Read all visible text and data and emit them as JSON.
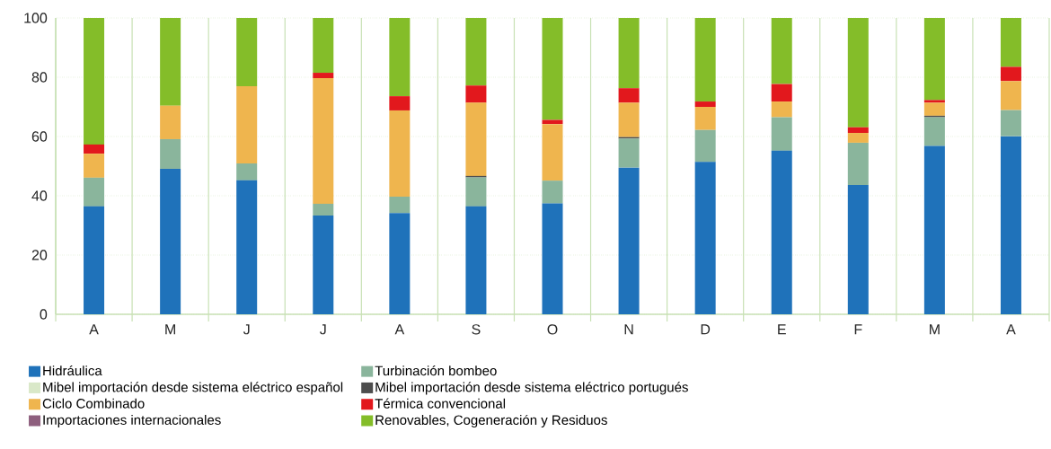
{
  "chart_data": {
    "type": "bar",
    "stacked": true,
    "categories": [
      "A",
      "M",
      "J",
      "J",
      "A",
      "S",
      "O",
      "N",
      "D",
      "E",
      "F",
      "M",
      "A"
    ],
    "ylim": [
      0,
      100
    ],
    "yticks": [
      0,
      20,
      40,
      60,
      80,
      100
    ],
    "grid": "y",
    "legend": "bottom",
    "series": [
      {
        "name": "Hidráulica",
        "color": "#1f72ba",
        "values": [
          36.4,
          49.1,
          45.2,
          33.3,
          34.2,
          36.4,
          37.4,
          49.5,
          51.4,
          55.2,
          43.6,
          56.8,
          60.1
        ]
      },
      {
        "name": "Turbinación bombeo",
        "color": "#8ab59c",
        "values": [
          9.7,
          10.0,
          5.7,
          4.0,
          5.5,
          9.8,
          7.7,
          9.8,
          10.8,
          11.3,
          14.3,
          9.7,
          8.8
        ]
      },
      {
        "name": "Mibel importación desde sistema eléctrico español",
        "color": "#d9e8c8",
        "values": [
          0,
          0,
          0,
          0,
          0,
          0,
          0,
          0,
          0,
          0,
          0,
          0,
          0
        ]
      },
      {
        "name": "Mibel importación desde sistema eléctrico portugués",
        "color": "#4d4d4d",
        "values": [
          0,
          0,
          0,
          0,
          0,
          0.5,
          0,
          0.5,
          0,
          0,
          0,
          0.5,
          0
        ]
      },
      {
        "name": "Ciclo Combinado",
        "color": "#efb54e",
        "values": [
          8.1,
          11.3,
          26.1,
          42.4,
          29.1,
          24.7,
          19.1,
          11.6,
          7.8,
          5.3,
          3.3,
          4.4,
          9.8
        ]
      },
      {
        "name": "Térmica convencional",
        "color": "#e2181d",
        "values": [
          3.1,
          0,
          0,
          1.8,
          4.8,
          5.8,
          1.4,
          4.9,
          1.8,
          5.9,
          1.9,
          0.9,
          4.8
        ]
      },
      {
        "name": "Importaciones internacionales",
        "color": "#8e5f7e",
        "values": [
          0,
          0,
          0,
          0,
          0,
          0,
          0,
          0,
          0,
          0,
          0,
          0,
          0
        ]
      },
      {
        "name": "Renovables, Cogeneración y Residuos",
        "color": "#84bd29",
        "values": [
          42.7,
          29.6,
          23.0,
          18.5,
          26.4,
          22.8,
          34.4,
          23.7,
          28.2,
          22.3,
          36.9,
          27.7,
          16.5
        ]
      }
    ]
  }
}
